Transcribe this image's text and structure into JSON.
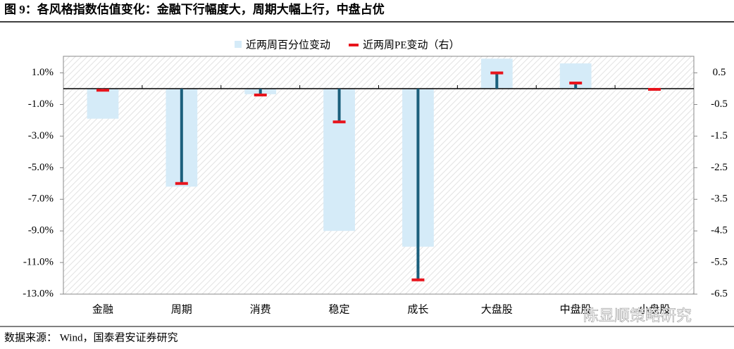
{
  "chart_data": {
    "type": "bar",
    "title": "图 9：各风格指数估值变化：金融下行幅度大，周期大幅上行，中盘占优",
    "categories": [
      "金融",
      "周期",
      "消费",
      "稳定",
      "成长",
      "大盘股",
      "中盘股",
      "小盘股"
    ],
    "series": [
      {
        "name": "近两周百分位变动",
        "color": "#d5ebf8",
        "mark": "bar",
        "axis": "y",
        "values": [
          -1.9,
          -6.2,
          -0.35,
          -9.0,
          -10.0,
          1.9,
          1.6,
          0.0
        ]
      },
      {
        "name": "近两周PE变动（右）",
        "color": "#e8141c",
        "stem_color": "#1b5f7c",
        "mark": "stem",
        "axis": "y2",
        "values": [
          -0.05,
          -3.0,
          -0.2,
          -1.05,
          -6.05,
          0.5,
          0.18,
          -0.02
        ]
      }
    ],
    "ylim": [
      -13,
      2.05
    ],
    "yticks": [
      {
        "value": 1,
        "label": "1.0%"
      },
      {
        "value": -1,
        "label": "-1.0%"
      },
      {
        "value": -3,
        "label": "-3.0%"
      },
      {
        "value": -5,
        "label": "-5.0%"
      },
      {
        "value": -7,
        "label": "-7.0%"
      },
      {
        "value": -9,
        "label": "-9.0%"
      },
      {
        "value": -11,
        "label": "-11.0%"
      },
      {
        "value": -13,
        "label": "-13.0%"
      }
    ],
    "y2lim": [
      -6.5,
      1.025
    ],
    "y2ticks": [
      0.5,
      -0.5,
      -1.5,
      -2.5,
      -3.5,
      -4.5,
      -5.5,
      -6.5
    ],
    "legend": "top",
    "source": "数据来源： Wind，国泰君安证券研究",
    "watermark": "陈显顺策略研究"
  }
}
